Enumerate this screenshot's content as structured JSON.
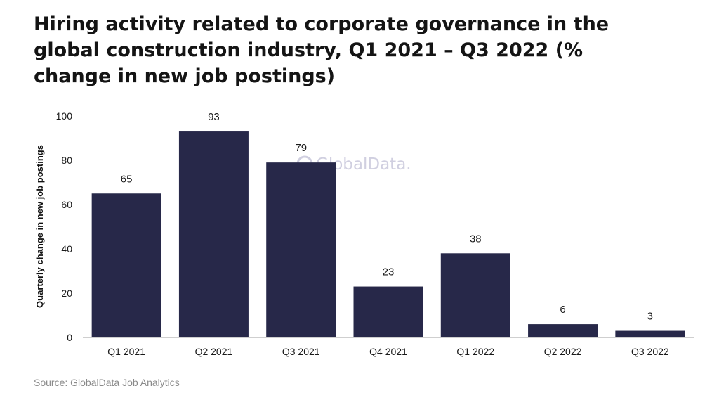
{
  "chart_data": {
    "type": "bar",
    "title": "Hiring activity related to corporate governance in the global construction industry, Q1 2021 – Q3 2022 (% change in new job postings)",
    "ylabel": "Quarterly change in new job postings",
    "xlabel": "",
    "categories": [
      "Q1 2021",
      "Q2 2021",
      "Q3 2021",
      "Q4 2021",
      "Q1 2022",
      "Q2 2022",
      "Q3 2022"
    ],
    "values": [
      65,
      93,
      79,
      23,
      38,
      6,
      3
    ],
    "ylim": [
      0,
      100
    ],
    "yticks": [
      0,
      20,
      40,
      60,
      80,
      100
    ],
    "grid": false,
    "bar_color": "#272849",
    "source": "Source: GlobalData Job Analytics",
    "watermark": "GlobalData."
  }
}
